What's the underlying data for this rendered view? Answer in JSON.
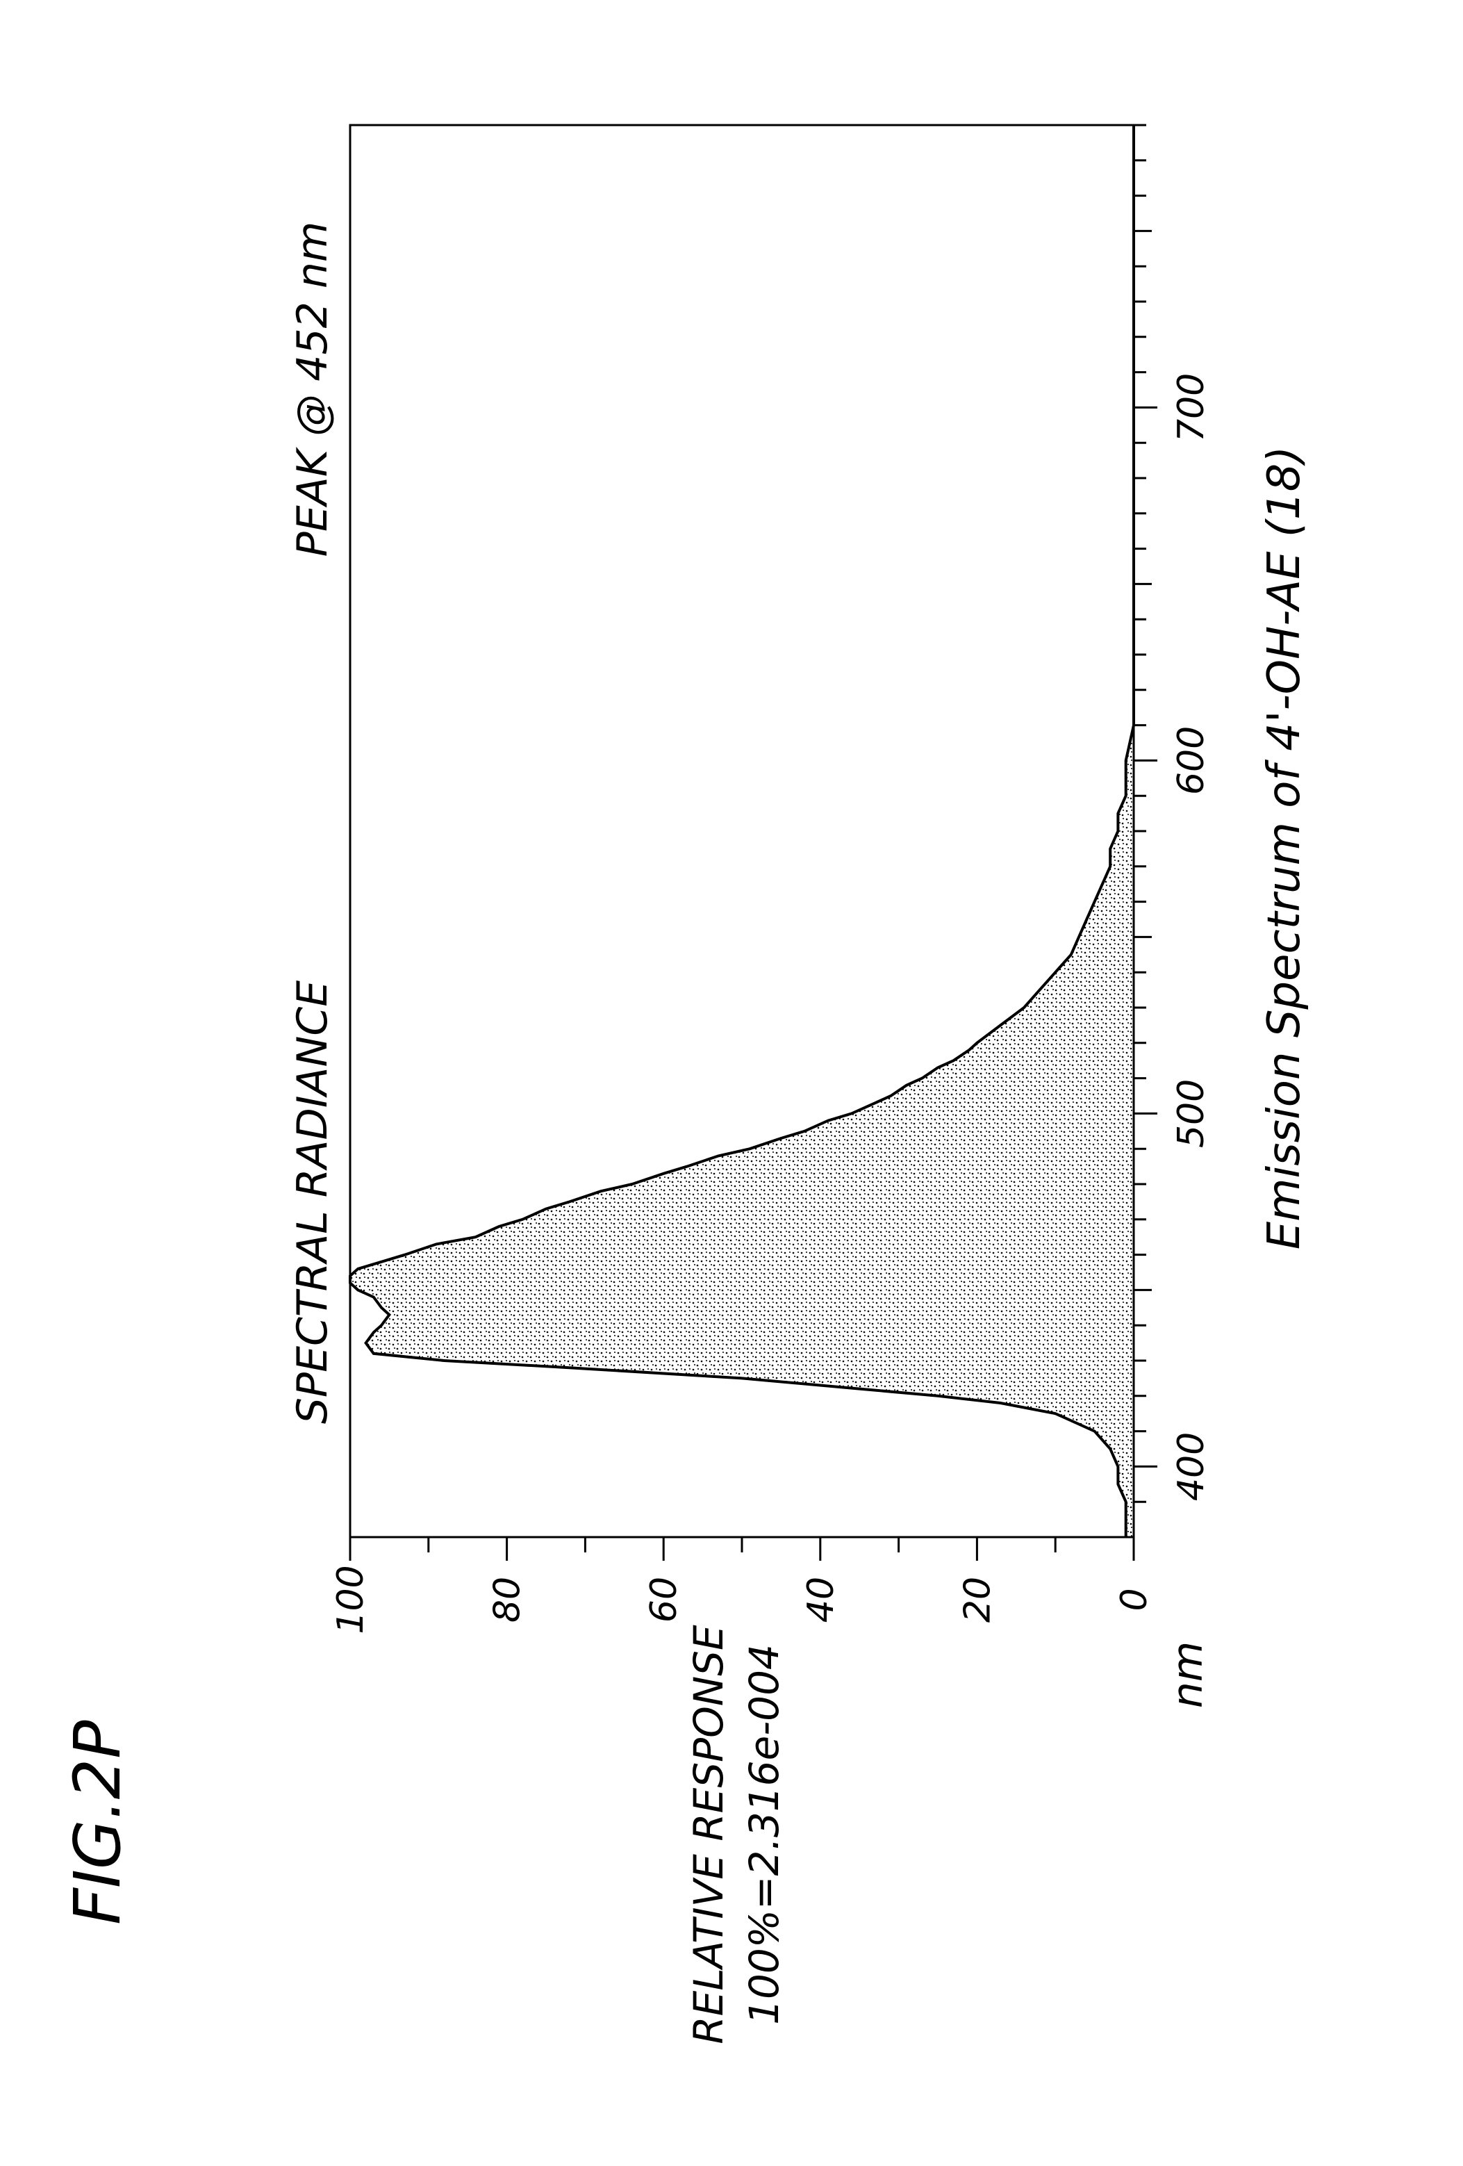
{
  "figure": {
    "label": "FIG.2P"
  },
  "chart_data": {
    "type": "area",
    "title": "SPECTRAL RADIANCE",
    "annotation": "PEAK @ 452 nm",
    "caption": "Emission Spectrum of 4'-OH-AE (18)",
    "ylabel": "RELATIVE RESPONSE",
    "ylabel_sub": "100%=2.316e-004",
    "xlabel": "nm",
    "xlim": [
      380,
      780
    ],
    "ylim": [
      0,
      100
    ],
    "x_ticks": [
      "400",
      "500",
      "600",
      "700"
    ],
    "y_ticks": [
      "100",
      "80",
      "60",
      "40",
      "20",
      "0"
    ],
    "grid": false,
    "fill": "stippled",
    "x": [
      380,
      385,
      390,
      395,
      400,
      405,
      410,
      415,
      418,
      420,
      422,
      425,
      428,
      430,
      432,
      435,
      438,
      440,
      443,
      445,
      448,
      450,
      452,
      454,
      456,
      458,
      460,
      463,
      465,
      468,
      470,
      473,
      475,
      478,
      480,
      483,
      485,
      488,
      490,
      493,
      495,
      498,
      500,
      503,
      505,
      508,
      510,
      513,
      515,
      518,
      520,
      525,
      530,
      535,
      540,
      545,
      550,
      555,
      560,
      565,
      570,
      575,
      580,
      585,
      590,
      595,
      600,
      610,
      620,
      640,
      660,
      680,
      700,
      720,
      740,
      760,
      780
    ],
    "values": [
      1,
      1,
      1,
      2,
      2,
      3,
      5,
      10,
      17,
      25,
      35,
      50,
      72,
      88,
      97,
      98,
      97,
      96,
      95,
      96,
      97,
      99,
      100,
      100,
      99,
      96,
      93,
      89,
      84,
      81,
      78,
      75,
      72,
      68,
      64,
      60,
      57,
      53,
      49,
      45,
      42,
      39,
      36,
      33,
      31,
      29,
      27,
      25,
      23,
      21,
      20,
      17,
      14,
      12,
      10,
      8,
      7,
      6,
      5,
      4,
      3,
      3,
      2,
      2,
      1,
      1,
      1,
      0,
      0,
      0,
      0,
      0,
      0,
      0,
      0,
      0,
      0
    ]
  }
}
